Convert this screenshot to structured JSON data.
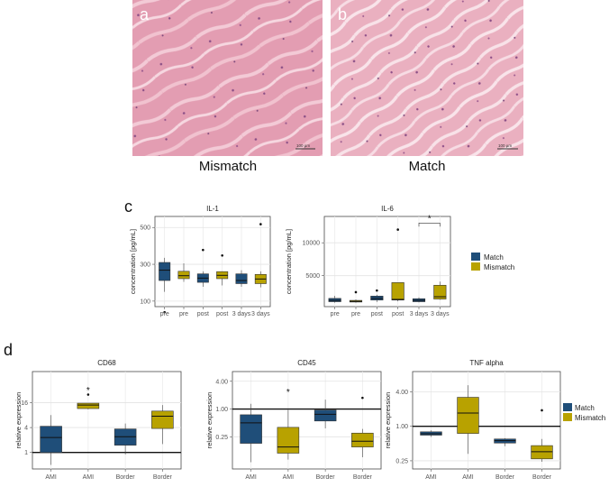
{
  "figure": {
    "panels": {
      "a": "a",
      "b": "b",
      "c": "c",
      "d": "d"
    },
    "histology": [
      {
        "letter": "a",
        "caption": "Mismatch",
        "scale_bar": "100 µm"
      },
      {
        "letter": "b",
        "caption": "Match",
        "scale_bar": "100 µm"
      }
    ],
    "legend": {
      "items": [
        {
          "name": "Match",
          "color": "#1f4e79"
        },
        {
          "name": "Mismatch",
          "color": "#b8a200"
        }
      ]
    }
  },
  "chart_data": [
    {
      "type": "box",
      "id": "il1",
      "title": "IL-1",
      "ylabel": "concentration [pg/mL]",
      "ylim": [
        70,
        560
      ],
      "yticks": [
        100,
        300,
        500
      ],
      "categories": [
        "pre",
        "pre",
        "post",
        "post",
        "3 days",
        "3 days"
      ],
      "groups": [
        "Match",
        "Mismatch",
        "Match",
        "Mismatch",
        "Match",
        "Mismatch"
      ],
      "boxes": [
        {
          "min": 150,
          "q1": 212,
          "median": 268,
          "q3": 310,
          "max": 335,
          "outliers": [
            40
          ]
        },
        {
          "min": 205,
          "q1": 222,
          "median": 238,
          "q3": 262,
          "max": 305,
          "outliers": []
        },
        {
          "min": 178,
          "q1": 202,
          "median": 225,
          "q3": 248,
          "max": 262,
          "outliers": [
            378
          ]
        },
        {
          "min": 185,
          "q1": 222,
          "median": 240,
          "q3": 260,
          "max": 262,
          "outliers": [
            348
          ]
        },
        {
          "min": 178,
          "q1": 195,
          "median": 212,
          "q3": 248,
          "max": 268,
          "outliers": []
        },
        {
          "min": 175,
          "q1": 195,
          "median": 220,
          "q3": 245,
          "max": 262,
          "outliers": [
            518
          ]
        }
      ],
      "annotations": []
    },
    {
      "type": "box",
      "id": "il6",
      "title": "IL-6",
      "ylabel": "concentration [pg/mL]",
      "ylim": [
        300,
        14000
      ],
      "yticks": [
        5000,
        10000
      ],
      "categories": [
        "pre",
        "pre",
        "post",
        "post",
        "3 days",
        "3 days"
      ],
      "groups": [
        "Match",
        "Mismatch",
        "Match",
        "Mismatch",
        "Match",
        "Mismatch"
      ],
      "boxes": [
        {
          "min": 900,
          "q1": 1050,
          "median": 1250,
          "q3": 1550,
          "max": 1950,
          "outliers": []
        },
        {
          "min": 900,
          "q1": 1000,
          "median": 1100,
          "q3": 1250,
          "max": 1400,
          "outliers": [
            2500
          ]
        },
        {
          "min": 1000,
          "q1": 1300,
          "median": 1550,
          "q3": 1900,
          "max": 2100,
          "outliers": [
            2750
          ]
        },
        {
          "min": 1100,
          "q1": 1300,
          "median": 1400,
          "q3": 3950,
          "max": 3950,
          "outliers": [
            12000
          ]
        },
        {
          "min": 950,
          "q1": 1050,
          "median": 1250,
          "q3": 1500,
          "max": 1700,
          "outliers": []
        },
        {
          "min": 1350,
          "q1": 1450,
          "median": 1800,
          "q3": 3550,
          "max": 4100,
          "outliers": []
        }
      ],
      "annotations": [
        {
          "from": 4,
          "to": 5,
          "y": 13000,
          "label": "*"
        }
      ]
    },
    {
      "type": "box",
      "id": "cd68",
      "title": "CD68",
      "ylabel": "relative expression",
      "scale": "log2",
      "ylim": [
        0.4,
        90
      ],
      "yticks": [
        1,
        4,
        16
      ],
      "ytick_labels": [
        "1",
        "4",
        "16"
      ],
      "ref_line": 1,
      "categories": [
        "AMI",
        "AMI",
        "Border",
        "Border"
      ],
      "groups": [
        "Match",
        "Mismatch",
        "Match",
        "Mismatch"
      ],
      "boxes": [
        {
          "min": 0.5,
          "q1": 1.0,
          "median": 2.3,
          "q3": 4.3,
          "max": 8.0,
          "outliers": []
        },
        {
          "min": 11,
          "q1": 11.5,
          "median": 14,
          "q3": 15.5,
          "max": 15.5,
          "outliers": [
            25
          ]
        },
        {
          "min": 0.9,
          "q1": 1.5,
          "median": 2.4,
          "q3": 3.7,
          "max": 5.0,
          "outliers": []
        },
        {
          "min": 1.6,
          "q1": 3.8,
          "median": 7.5,
          "q3": 10,
          "max": 14,
          "outliers": []
        }
      ],
      "annotations": [
        {
          "at": 1,
          "y": 33,
          "label": "*"
        }
      ]
    },
    {
      "type": "box",
      "id": "cd45",
      "title": "CD45",
      "ylabel": "relative expression",
      "scale": "log2",
      "ylim": [
        0.05,
        6.5
      ],
      "yticks": [
        0.25,
        1.0,
        4.0
      ],
      "ytick_labels": [
        "0.25",
        "1.00",
        "4.00"
      ],
      "ref_line": 1,
      "categories": [
        "AMI",
        "AMI",
        "Border",
        "Border"
      ],
      "groups": [
        "Match",
        "Mismatch",
        "Match",
        "Mismatch"
      ],
      "boxes": [
        {
          "min": 0.07,
          "q1": 0.18,
          "median": 0.5,
          "q3": 0.75,
          "max": 1.3,
          "outliers": []
        },
        {
          "min": 0.08,
          "q1": 0.11,
          "median": 0.15,
          "q3": 0.4,
          "max": 0.95,
          "outliers": []
        },
        {
          "min": 0.38,
          "q1": 0.55,
          "median": 0.77,
          "q3": 0.95,
          "max": 1.6,
          "outliers": []
        },
        {
          "min": 0.09,
          "q1": 0.15,
          "median": 0.2,
          "q3": 0.3,
          "max": 0.37,
          "outliers": [
            1.75
          ]
        }
      ],
      "annotations": [
        {
          "at": 1,
          "y": 2.4,
          "label": "*"
        }
      ]
    },
    {
      "type": "box",
      "id": "tnf",
      "title": "TNF alpha",
      "ylabel": "relative expression",
      "scale": "log2",
      "ylim": [
        0.18,
        9
      ],
      "yticks": [
        0.25,
        1.0,
        4.0
      ],
      "ytick_labels": [
        "0.25",
        "1.00",
        "4.00"
      ],
      "ref_line": 1,
      "categories": [
        "AMI",
        "AMI",
        "Border",
        "Border"
      ],
      "groups": [
        "Match",
        "Mismatch",
        "Match",
        "Mismatch"
      ],
      "boxes": [
        {
          "min": 0.65,
          "q1": 0.7,
          "median": 0.74,
          "q3": 0.8,
          "max": 0.85,
          "outliers": []
        },
        {
          "min": 0.33,
          "q1": 0.75,
          "median": 1.7,
          "q3": 3.2,
          "max": 5.2,
          "outliers": []
        },
        {
          "min": 0.45,
          "q1": 0.51,
          "median": 0.56,
          "q3": 0.6,
          "max": 0.62,
          "outliers": []
        },
        {
          "min": 0.24,
          "q1": 0.27,
          "median": 0.36,
          "q3": 0.46,
          "max": 0.6,
          "outliers": [
            1.9
          ]
        }
      ],
      "annotations": []
    }
  ]
}
